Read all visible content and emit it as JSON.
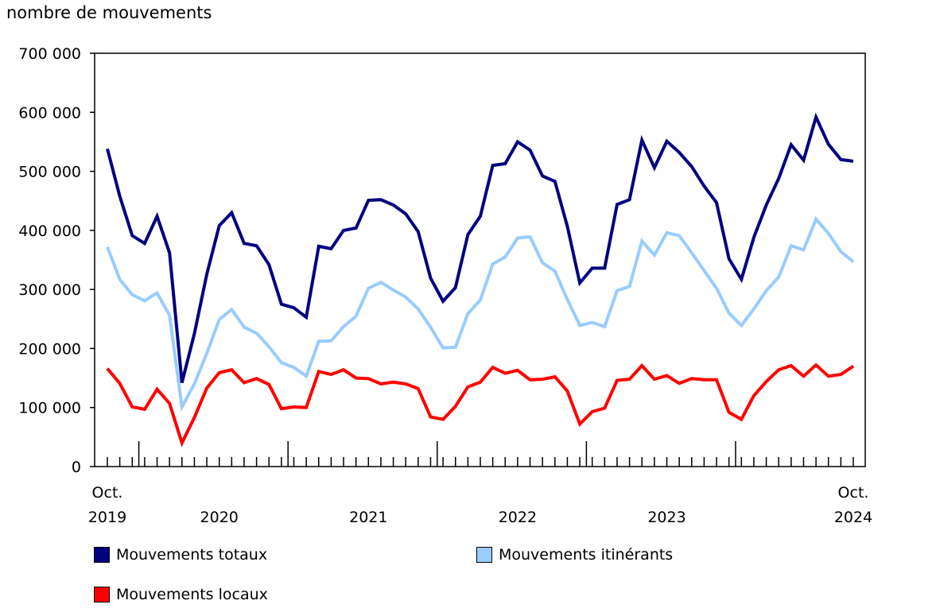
{
  "chart_data": {
    "type": "line",
    "ylabel": "nombre de mouvements",
    "ylim": [
      0,
      700000
    ],
    "y_ticks": [
      0,
      100000,
      200000,
      300000,
      400000,
      500000,
      600000,
      700000
    ],
    "y_tick_labels": [
      "0",
      "100 000",
      "200 000",
      "300 000",
      "400 000",
      "500 000",
      "600 000",
      "700 000"
    ],
    "x_start": "2019-10",
    "x_end": "2024-10",
    "x_labels": [
      {
        "month_index": 0,
        "line1": "Oct.",
        "line2": "2019"
      },
      {
        "month_index": 9,
        "line1": "",
        "line2": "2020"
      },
      {
        "month_index": 21,
        "line1": "",
        "line2": "2021"
      },
      {
        "month_index": 33,
        "line1": "",
        "line2": "2022"
      },
      {
        "month_index": 45,
        "line1": "",
        "line2": "2023"
      },
      {
        "month_index": 60,
        "line1": "Oct.",
        "line2": "2024"
      }
    ],
    "year_boundaries": [
      3,
      15,
      27,
      39,
      51
    ],
    "series": [
      {
        "name": "Mouvements totaux",
        "color": "#000080",
        "values": [
          538000,
          458000,
          391000,
          378000,
          424000,
          362000,
          142000,
          225000,
          326000,
          408000,
          430000,
          378000,
          374000,
          342000,
          275000,
          269000,
          253000,
          373000,
          369000,
          400000,
          404000,
          451000,
          452000,
          443000,
          428000,
          398000,
          319000,
          280000,
          303000,
          393000,
          424000,
          510000,
          513000,
          550000,
          536000,
          492000,
          483000,
          407000,
          311000,
          336000,
          336000,
          444000,
          452000,
          553000,
          506000,
          551000,
          532000,
          508000,
          475000,
          447000,
          352000,
          317000,
          388000,
          443000,
          488000,
          545000,
          519000,
          592000,
          546000,
          520000,
          517000
        ]
      },
      {
        "name": "Mouvements itinérants",
        "color": "#99ccff",
        "values": [
          372000,
          317000,
          291000,
          281000,
          294000,
          256000,
          101000,
          140000,
          192000,
          249000,
          266000,
          236000,
          226000,
          203000,
          176000,
          168000,
          153000,
          212000,
          213000,
          237000,
          255000,
          302000,
          312000,
          299000,
          287000,
          267000,
          236000,
          201000,
          202000,
          259000,
          282000,
          343000,
          355000,
          387000,
          389000,
          345000,
          331000,
          283000,
          239000,
          244000,
          237000,
          298000,
          305000,
          382000,
          358000,
          396000,
          391000,
          362000,
          332000,
          302000,
          260000,
          239000,
          267000,
          298000,
          321000,
          374000,
          367000,
          419000,
          395000,
          364000,
          347000
        ]
      },
      {
        "name": "Mouvements locaux",
        "color": "#ff0000",
        "values": [
          166000,
          141000,
          101000,
          97000,
          131000,
          107000,
          40000,
          83000,
          133000,
          159000,
          164000,
          142000,
          149000,
          139000,
          98000,
          101000,
          100000,
          161000,
          156000,
          164000,
          150000,
          149000,
          140000,
          143000,
          140000,
          132000,
          84000,
          80000,
          102000,
          135000,
          143000,
          168000,
          158000,
          163000,
          147000,
          148000,
          152000,
          128000,
          72000,
          93000,
          99000,
          146000,
          148000,
          171000,
          148000,
          154000,
          141000,
          149000,
          147000,
          147000,
          92000,
          80000,
          120000,
          144000,
          164000,
          171000,
          153000,
          172000,
          153000,
          156000,
          170000
        ]
      }
    ]
  },
  "legend": {
    "totaux": {
      "label": "Mouvements totaux",
      "color": "#000080"
    },
    "itinerants": {
      "label": "Mouvements itinérants",
      "color": "#99ccff"
    },
    "locaux": {
      "label": "Mouvements locaux",
      "color": "#ff0000"
    }
  }
}
